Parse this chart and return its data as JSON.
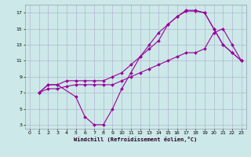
{
  "xlabel": "Windchill (Refroidissement éolien,°C)",
  "bg_color": "#cce8e8",
  "grid_color": "#aaaacc",
  "line_color": "#990099",
  "line1_x": [
    1,
    2,
    3,
    4,
    5,
    6,
    7,
    8,
    9,
    10,
    11,
    12,
    13,
    14,
    15,
    16,
    17,
    18,
    19,
    20,
    21,
    22,
    23
  ],
  "line1_y": [
    7,
    8,
    8,
    8.5,
    8.5,
    8.5,
    8.5,
    8.5,
    9,
    9.5,
    10.5,
    11.5,
    12.5,
    13.5,
    15.5,
    16.5,
    17.2,
    17.2,
    17,
    15,
    13,
    12,
    11
  ],
  "line2_x": [
    1,
    2,
    3,
    5,
    6,
    7,
    8,
    9,
    10,
    11,
    12,
    13,
    14,
    15,
    16,
    17,
    18,
    19,
    20,
    21,
    22,
    23
  ],
  "line2_y": [
    7,
    8,
    8,
    6.5,
    4,
    3,
    3,
    5,
    7.5,
    9.5,
    11.5,
    13,
    14.5,
    15.5,
    16.5,
    17.3,
    17.3,
    17,
    15,
    13,
    12,
    11
  ],
  "line3_x": [
    1,
    2,
    3,
    4,
    5,
    6,
    7,
    8,
    9,
    10,
    11,
    12,
    13,
    14,
    15,
    16,
    17,
    18,
    19,
    20,
    21,
    22,
    23
  ],
  "line3_y": [
    7,
    7.5,
    7.5,
    7.8,
    8,
    8,
    8,
    8,
    8,
    8.5,
    9,
    9.5,
    10,
    10.5,
    11,
    11.5,
    12,
    12,
    12.5,
    14.5,
    15,
    13,
    11
  ],
  "xlim": [
    -0.5,
    23.5
  ],
  "ylim": [
    2.5,
    18.0
  ],
  "yticks": [
    3,
    5,
    7,
    9,
    11,
    13,
    15,
    17
  ],
  "xticks": [
    0,
    1,
    2,
    3,
    4,
    5,
    6,
    7,
    8,
    9,
    10,
    11,
    12,
    13,
    14,
    15,
    16,
    17,
    18,
    19,
    20,
    21,
    22,
    23
  ],
  "marker": "D",
  "markersize": 2,
  "linewidth": 0.8
}
